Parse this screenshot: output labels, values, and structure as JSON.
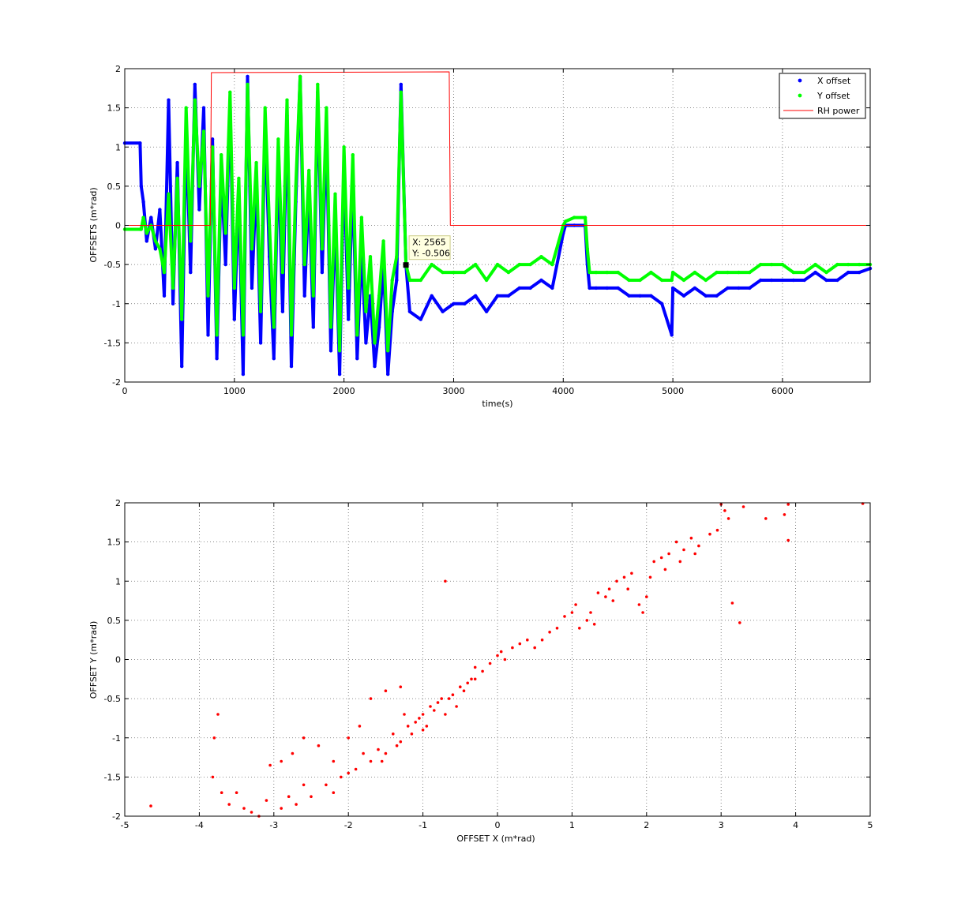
{
  "chart_data": [
    {
      "type": "line",
      "title": "",
      "xlabel": "time(s)",
      "ylabel": "OFFSETS (m*rad)",
      "xlim": [
        0,
        6800
      ],
      "ylim": [
        -2,
        2
      ],
      "xticks": [
        0,
        1000,
        2000,
        3000,
        4000,
        5000,
        6000
      ],
      "xtick_labels": [
        "0",
        "1000",
        "2000",
        "3000",
        "4000",
        "5000",
        "6000"
      ],
      "yticks": [
        -2,
        -1.5,
        -1,
        -0.5,
        0,
        0.5,
        1,
        1.5,
        2
      ],
      "ytick_labels": [
        "-2",
        "-1.5",
        "-1",
        "-0.5",
        "0",
        "0.5",
        "1",
        "1.5",
        "2"
      ],
      "grid": true,
      "legend_position": "top-right",
      "series": [
        {
          "name": "X offset",
          "color": "#0000ff",
          "marker": "dot",
          "x": [
            0,
            140,
            150,
            170,
            200,
            240,
            280,
            320,
            360,
            400,
            440,
            480,
            520,
            560,
            600,
            640,
            680,
            720,
            760,
            800,
            840,
            880,
            920,
            960,
            1000,
            1040,
            1080,
            1120,
            1160,
            1200,
            1240,
            1280,
            1320,
            1360,
            1400,
            1440,
            1480,
            1520,
            1560,
            1600,
            1640,
            1680,
            1720,
            1760,
            1800,
            1840,
            1880,
            1920,
            1960,
            2000,
            2040,
            2080,
            2120,
            2160,
            2200,
            2240,
            2280,
            2320,
            2360,
            2400,
            2440,
            2480,
            2520,
            2565,
            2600,
            2700,
            2800,
            2900,
            3000,
            3100,
            3200,
            3300,
            3400,
            3500,
            3600,
            3700,
            3800,
            3900,
            4000,
            4020,
            4100,
            4200,
            4220,
            4240,
            4300,
            4400,
            4500,
            4600,
            4700,
            4800,
            4900,
            4990,
            5000,
            5100,
            5200,
            5300,
            5400,
            5500,
            5600,
            5700,
            5800,
            5900,
            6000,
            6100,
            6200,
            6300,
            6400,
            6500,
            6600,
            6700,
            6800
          ],
          "y": [
            1.05,
            1.05,
            0.5,
            0.3,
            -0.2,
            0.1,
            -0.3,
            0.2,
            -0.9,
            1.6,
            -1.0,
            0.8,
            -1.8,
            1.2,
            -0.6,
            1.8,
            0.2,
            1.5,
            -1.4,
            1.1,
            -1.7,
            0.7,
            -0.5,
            1.6,
            -1.2,
            0.4,
            -1.9,
            1.9,
            -0.8,
            0.6,
            -1.5,
            1.3,
            -0.4,
            -1.7,
            0.9,
            -1.1,
            1.4,
            -1.8,
            0.3,
            1.9,
            -0.9,
            0.5,
            -1.3,
            1.7,
            -0.6,
            1.2,
            -1.6,
            0.1,
            -1.9,
            0.8,
            -1.2,
            0.6,
            -1.7,
            -0.3,
            -1.5,
            -0.9,
            -1.8,
            -1.3,
            -0.5,
            -1.9,
            -1.1,
            -0.7,
            1.8,
            -0.506,
            -1.1,
            -1.2,
            -0.9,
            -1.1,
            -1.0,
            -1.0,
            -0.9,
            -1.1,
            -0.9,
            -0.9,
            -0.8,
            -0.8,
            -0.7,
            -0.8,
            -0.1,
            0.0,
            0.0,
            0.0,
            -0.5,
            -0.8,
            -0.8,
            -0.8,
            -0.8,
            -0.9,
            -0.9,
            -0.9,
            -1.0,
            -1.4,
            -0.8,
            -0.9,
            -0.8,
            -0.9,
            -0.9,
            -0.8,
            -0.8,
            -0.8,
            -0.7,
            -0.7,
            -0.7,
            -0.7,
            -0.7,
            -0.6,
            -0.7,
            -0.7,
            -0.6,
            -0.6,
            -0.55
          ]
        },
        {
          "name": "Y offset",
          "color": "#00ff00",
          "marker": "dot",
          "x": [
            0,
            140,
            150,
            170,
            200,
            240,
            280,
            320,
            360,
            400,
            440,
            480,
            520,
            560,
            600,
            640,
            680,
            720,
            760,
            800,
            840,
            880,
            920,
            960,
            1000,
            1040,
            1080,
            1120,
            1160,
            1200,
            1240,
            1280,
            1320,
            1360,
            1400,
            1440,
            1480,
            1520,
            1560,
            1600,
            1640,
            1680,
            1720,
            1760,
            1800,
            1840,
            1880,
            1920,
            1960,
            2000,
            2040,
            2080,
            2120,
            2160,
            2200,
            2240,
            2280,
            2320,
            2360,
            2400,
            2440,
            2480,
            2520,
            2565,
            2600,
            2700,
            2800,
            2900,
            3000,
            3100,
            3200,
            3300,
            3400,
            3500,
            3600,
            3700,
            3800,
            3900,
            4000,
            4020,
            4100,
            4200,
            4220,
            4240,
            4300,
            4400,
            4500,
            4600,
            4700,
            4800,
            4900,
            4990,
            5000,
            5100,
            5200,
            5300,
            5400,
            5500,
            5600,
            5700,
            5800,
            5900,
            6000,
            6100,
            6200,
            6300,
            6400,
            6500,
            6600,
            6700,
            6800
          ],
          "y": [
            -0.05,
            -0.05,
            -0.05,
            0.1,
            -0.1,
            0.0,
            -0.2,
            -0.3,
            -0.6,
            0.4,
            -0.8,
            0.6,
            -1.2,
            1.5,
            -0.2,
            1.6,
            0.5,
            1.2,
            -0.9,
            1.0,
            -1.4,
            0.9,
            -0.1,
            1.7,
            -0.8,
            0.6,
            -1.4,
            1.8,
            -0.3,
            0.8,
            -1.1,
            1.5,
            0.0,
            -1.3,
            1.1,
            -0.6,
            1.6,
            -1.4,
            0.5,
            1.9,
            -0.5,
            0.7,
            -0.9,
            1.8,
            -0.3,
            1.5,
            -1.3,
            0.4,
            -1.6,
            1.0,
            -0.8,
            0.9,
            -1.4,
            0.1,
            -1.1,
            -0.4,
            -1.5,
            -0.9,
            -0.2,
            -1.6,
            -0.7,
            -0.4,
            1.7,
            -0.5,
            -0.7,
            -0.7,
            -0.5,
            -0.6,
            -0.6,
            -0.6,
            -0.5,
            -0.7,
            -0.5,
            -0.6,
            -0.5,
            -0.5,
            -0.4,
            -0.5,
            0.0,
            0.05,
            0.1,
            0.1,
            -0.3,
            -0.6,
            -0.6,
            -0.6,
            -0.6,
            -0.7,
            -0.7,
            -0.6,
            -0.7,
            -0.7,
            -0.6,
            -0.7,
            -0.6,
            -0.7,
            -0.6,
            -0.6,
            -0.6,
            -0.6,
            -0.5,
            -0.5,
            -0.5,
            -0.6,
            -0.6,
            -0.5,
            -0.6,
            -0.5,
            -0.5,
            -0.5,
            -0.5
          ]
        },
        {
          "name": "RH power",
          "color": "#ff0000",
          "marker": "none",
          "x": [
            0,
            780,
            790,
            2960,
            2970,
            6800
          ],
          "y": [
            0,
            0,
            1.95,
            1.96,
            0,
            0
          ]
        }
      ],
      "annotations": [
        {
          "type": "datatip",
          "x": 2565,
          "y": -0.506,
          "label_x": "X: 2565",
          "label_y": "Y: -0.506"
        }
      ]
    },
    {
      "type": "scatter",
      "title": "",
      "xlabel": "OFFSET X (m*rad)",
      "ylabel": "OFFSET Y (m*rad)",
      "xlim": [
        -5,
        5
      ],
      "ylim": [
        -2,
        2
      ],
      "xticks": [
        -5,
        -4,
        -3,
        -2,
        -1,
        0,
        1,
        2,
        3,
        4,
        5
      ],
      "xtick_labels": [
        "-5",
        "-4",
        "-3",
        "-2",
        "-1",
        "0",
        "1",
        "2",
        "3",
        "4",
        "5"
      ],
      "yticks": [
        -2,
        -1.5,
        -1,
        -0.5,
        0,
        0.5,
        1,
        1.5,
        2
      ],
      "ytick_labels": [
        "-2",
        "-1.5",
        "-1",
        "-0.5",
        "0",
        "0.5",
        "1",
        "1.5",
        "2"
      ],
      "grid": true,
      "color": "#ff0000",
      "points": [
        [
          -4.65,
          -1.87
        ],
        [
          -3.75,
          -0.7
        ],
        [
          -3.8,
          -1.0
        ],
        [
          -3.82,
          -1.5
        ],
        [
          -3.7,
          -1.7
        ],
        [
          -3.6,
          -1.85
        ],
        [
          -3.4,
          -1.9
        ],
        [
          -3.3,
          -1.95
        ],
        [
          -3.05,
          -1.35
        ],
        [
          -2.9,
          -1.3
        ],
        [
          -2.75,
          -1.2
        ],
        [
          -2.6,
          -1.0
        ],
        [
          -2.4,
          -1.1
        ],
        [
          -2.2,
          -1.3
        ],
        [
          -2.0,
          -1.0
        ],
        [
          -1.85,
          -0.85
        ],
        [
          -1.7,
          -0.5
        ],
        [
          -1.5,
          -0.4
        ],
        [
          -1.3,
          -0.35
        ],
        [
          -0.7,
          1.0
        ],
        [
          -0.3,
          -0.1
        ],
        [
          0.0,
          0.05
        ],
        [
          0.05,
          0.1
        ],
        [
          0.1,
          0.0
        ],
        [
          0.3,
          0.2
        ],
        [
          0.5,
          0.15
        ],
        [
          0.8,
          0.4
        ],
        [
          0.9,
          0.55
        ],
        [
          1.0,
          0.6
        ],
        [
          1.1,
          0.4
        ],
        [
          1.2,
          0.5
        ],
        [
          1.3,
          0.45
        ],
        [
          1.35,
          0.85
        ],
        [
          1.45,
          0.8
        ],
        [
          1.5,
          0.9
        ],
        [
          1.6,
          1.0
        ],
        [
          1.7,
          1.05
        ],
        [
          1.8,
          1.1
        ],
        [
          1.9,
          0.7
        ],
        [
          1.95,
          0.6
        ],
        [
          2.0,
          0.8
        ],
        [
          2.1,
          1.25
        ],
        [
          2.2,
          1.3
        ],
        [
          2.3,
          1.35
        ],
        [
          2.4,
          1.5
        ],
        [
          2.5,
          1.4
        ],
        [
          2.6,
          1.55
        ],
        [
          2.7,
          1.45
        ],
        [
          2.85,
          1.6
        ],
        [
          2.95,
          1.65
        ],
        [
          3.0,
          1.98
        ],
        [
          3.05,
          1.9
        ],
        [
          3.1,
          1.8
        ],
        [
          3.15,
          0.72
        ],
        [
          3.25,
          0.47
        ],
        [
          3.3,
          1.95
        ],
        [
          3.6,
          1.8
        ],
        [
          3.85,
          1.85
        ],
        [
          3.9,
          1.52
        ],
        [
          3.9,
          1.98
        ],
        [
          4.9,
          1.99
        ],
        [
          -1.0,
          -0.7
        ],
        [
          -0.9,
          -0.6
        ],
        [
          -0.8,
          -0.55
        ],
        [
          -0.6,
          -0.45
        ],
        [
          -0.5,
          -0.35
        ],
        [
          -0.4,
          -0.3
        ],
        [
          -0.2,
          -0.15
        ],
        [
          -1.1,
          -0.8
        ],
        [
          -1.2,
          -0.85
        ],
        [
          -1.4,
          -0.95
        ],
        [
          -1.6,
          -1.15
        ],
        [
          -1.8,
          -1.2
        ],
        [
          -1.9,
          -1.4
        ],
        [
          -2.1,
          -1.5
        ],
        [
          -2.3,
          -1.6
        ],
        [
          -2.5,
          -1.75
        ],
        [
          -2.7,
          -1.85
        ],
        [
          -2.9,
          -1.9
        ],
        [
          -1.3,
          -1.05
        ],
        [
          -1.5,
          -1.2
        ],
        [
          -1.0,
          -0.9
        ],
        [
          -0.7,
          -0.7
        ],
        [
          -0.75,
          -0.5
        ],
        [
          -0.55,
          -0.6
        ],
        [
          -0.3,
          -0.25
        ],
        [
          -0.1,
          -0.05
        ],
        [
          -1.7,
          -1.3
        ],
        [
          -1.25,
          -0.7
        ],
        [
          -1.05,
          -0.75
        ],
        [
          -0.95,
          -0.85
        ],
        [
          -0.85,
          -0.65
        ],
        [
          -0.65,
          -0.5
        ],
        [
          -0.45,
          -0.4
        ],
        [
          -0.35,
          -0.25
        ],
        [
          -1.15,
          -0.95
        ],
        [
          -1.35,
          -1.1
        ],
        [
          -1.55,
          -1.3
        ],
        [
          -2.0,
          -1.45
        ],
        [
          -2.2,
          -1.7
        ],
        [
          -2.6,
          -1.6
        ],
        [
          -2.8,
          -1.75
        ],
        [
          -3.1,
          -1.8
        ],
        [
          -3.2,
          -2.0
        ],
        [
          -3.5,
          -1.7
        ],
        [
          0.2,
          0.15
        ],
        [
          0.4,
          0.25
        ],
        [
          0.6,
          0.25
        ],
        [
          0.7,
          0.35
        ],
        [
          1.05,
          0.7
        ],
        [
          1.25,
          0.6
        ],
        [
          1.55,
          0.75
        ],
        [
          1.75,
          0.9
        ],
        [
          2.05,
          1.05
        ],
        [
          2.25,
          1.15
        ],
        [
          2.45,
          1.25
        ],
        [
          2.65,
          1.35
        ]
      ]
    }
  ]
}
